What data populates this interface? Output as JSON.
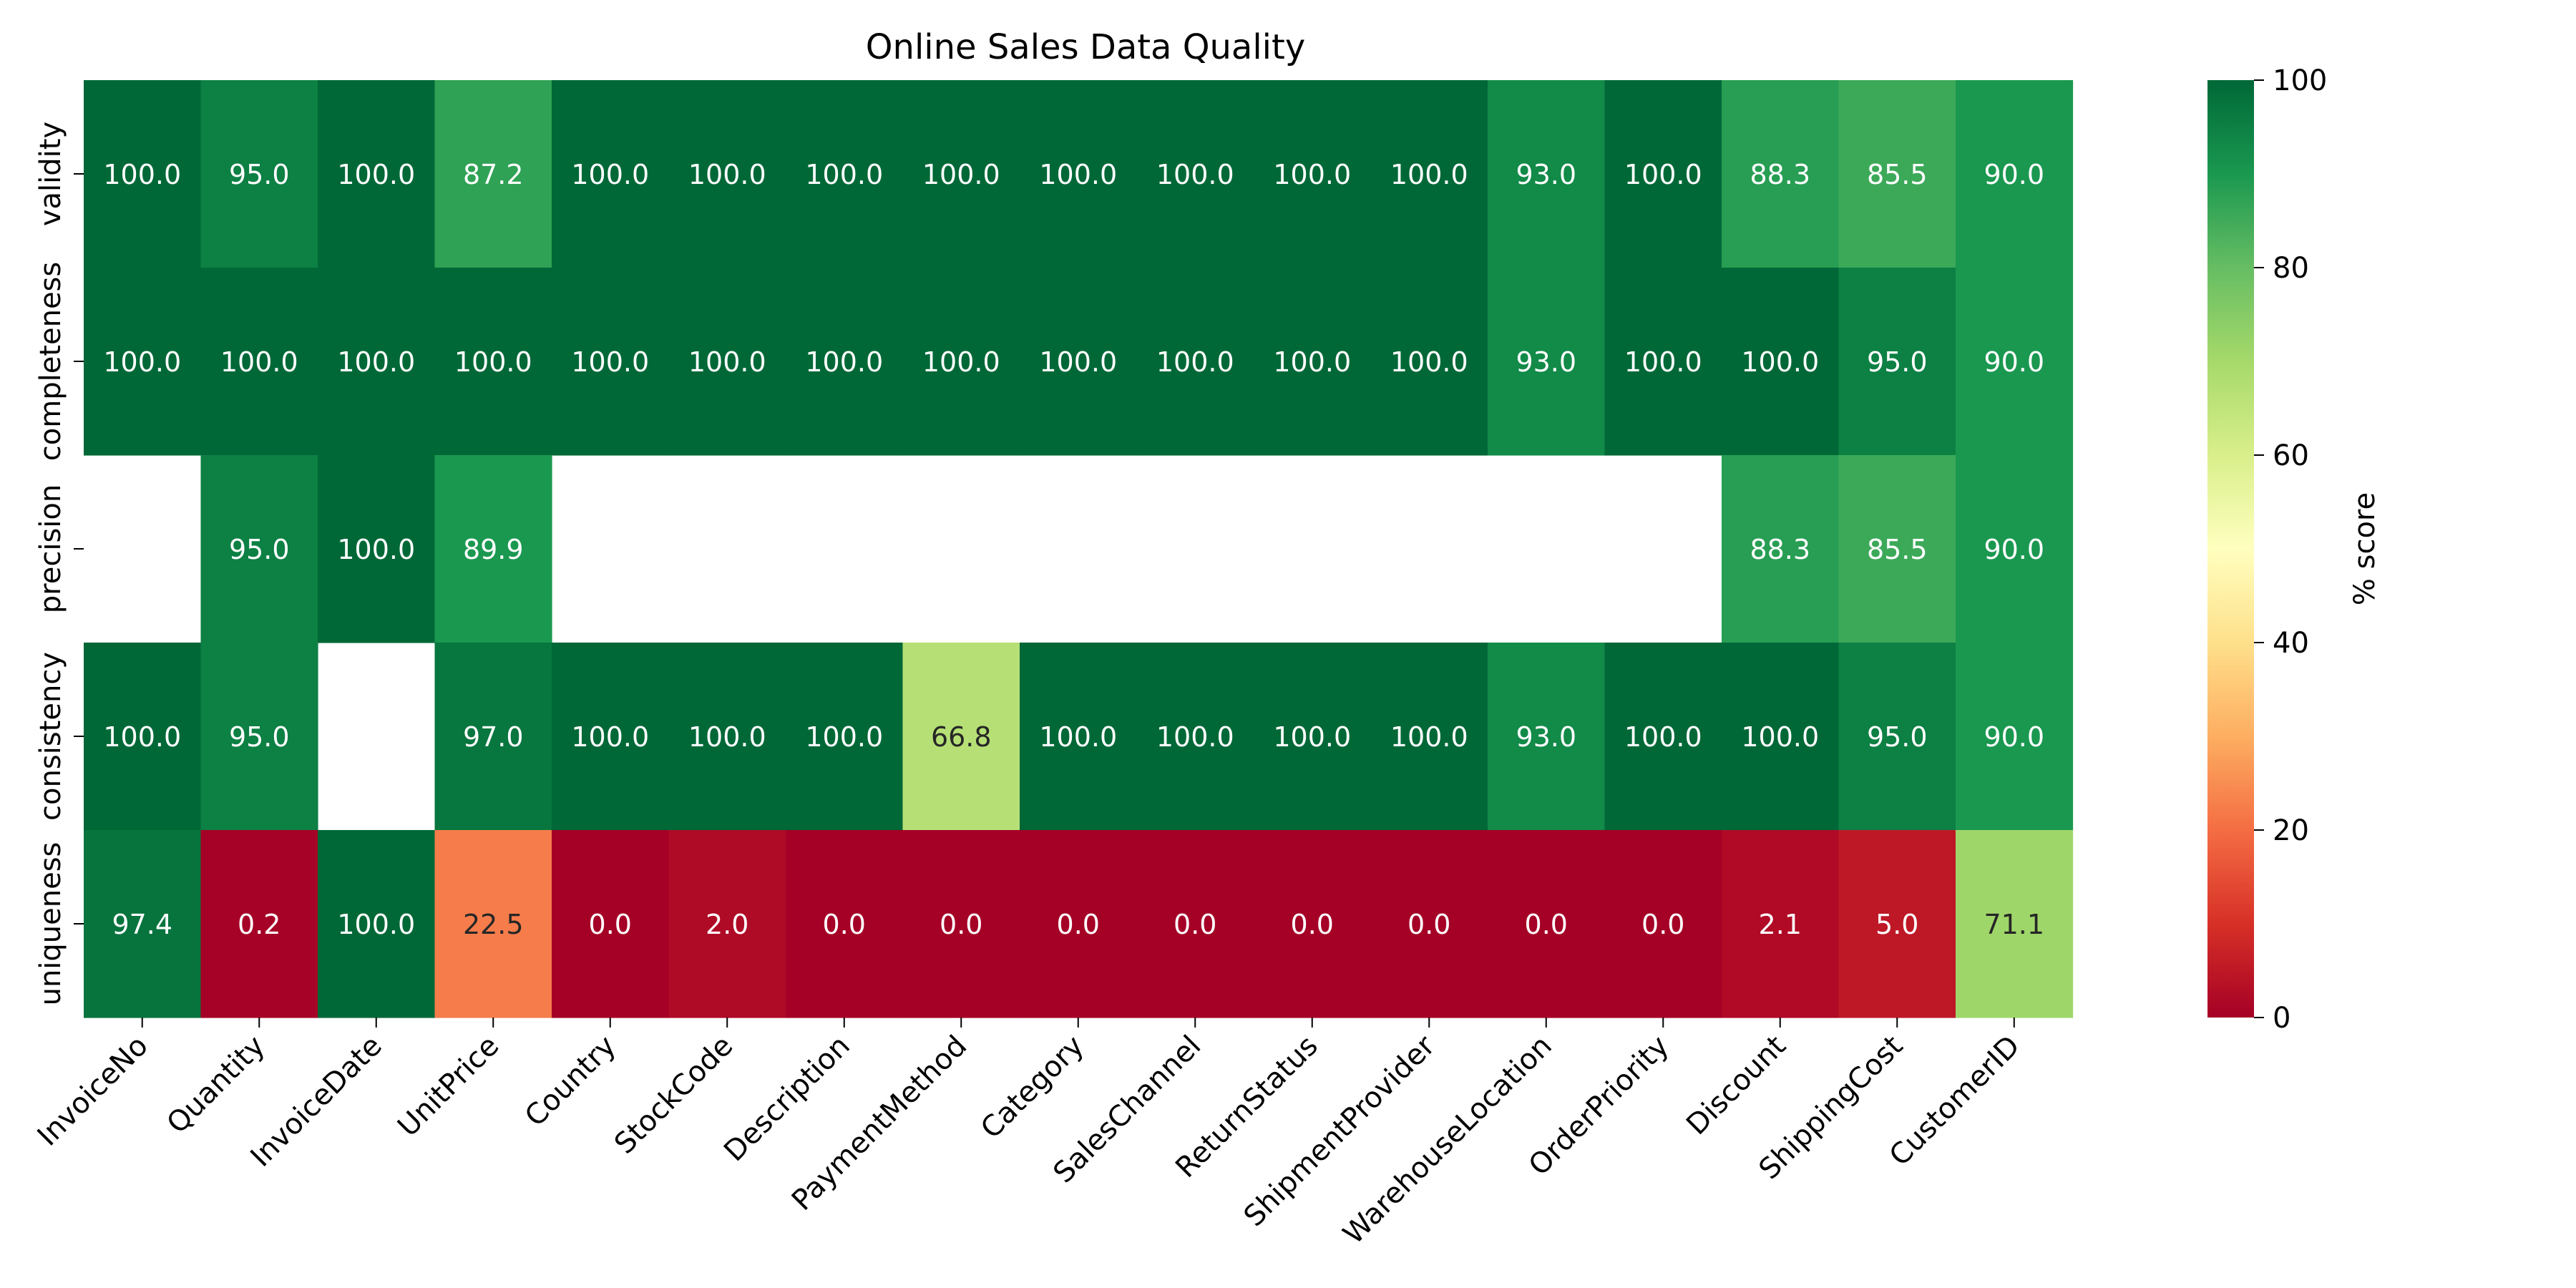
{
  "chart_data": {
    "type": "heatmap",
    "title": "Online Sales Data Quality",
    "xlabel": "",
    "ylabel": "",
    "x_categories": [
      "InvoiceNo",
      "Quantity",
      "InvoiceDate",
      "UnitPrice",
      "Country",
      "StockCode",
      "Description",
      "PaymentMethod",
      "Category",
      "SalesChannel",
      "ReturnStatus",
      "ShipmentProvider",
      "WarehouseLocation",
      "OrderPriority",
      "Discount",
      "ShippingCost",
      "CustomerID"
    ],
    "y_categories": [
      "validity",
      "completeness",
      "precision",
      "consistency",
      "uniqueness"
    ],
    "values": [
      [
        100.0,
        95.0,
        100.0,
        87.2,
        100.0,
        100.0,
        100.0,
        100.0,
        100.0,
        100.0,
        100.0,
        100.0,
        93.0,
        100.0,
        88.3,
        85.5,
        90.0
      ],
      [
        100.0,
        100.0,
        100.0,
        100.0,
        100.0,
        100.0,
        100.0,
        100.0,
        100.0,
        100.0,
        100.0,
        100.0,
        93.0,
        100.0,
        100.0,
        95.0,
        90.0
      ],
      [
        null,
        95.0,
        100.0,
        89.9,
        null,
        null,
        null,
        null,
        null,
        null,
        null,
        null,
        null,
        null,
        88.3,
        85.5,
        90.0
      ],
      [
        100.0,
        95.0,
        null,
        97.0,
        100.0,
        100.0,
        100.0,
        66.8,
        100.0,
        100.0,
        100.0,
        100.0,
        93.0,
        100.0,
        100.0,
        95.0,
        90.0
      ],
      [
        97.4,
        0.2,
        100.0,
        22.5,
        0.0,
        2.0,
        0.0,
        0.0,
        0.0,
        0.0,
        0.0,
        0.0,
        0.0,
        0.0,
        2.1,
        5.0,
        71.1
      ]
    ],
    "value_format": "0.0",
    "colormap": "RdYlGn",
    "color_range": [
      0,
      100
    ],
    "colorbar": {
      "label": "% score",
      "ticks": [
        "0",
        "20",
        "40",
        "60",
        "80",
        "100"
      ]
    },
    "grid": false,
    "legend": "colorbar-right"
  }
}
